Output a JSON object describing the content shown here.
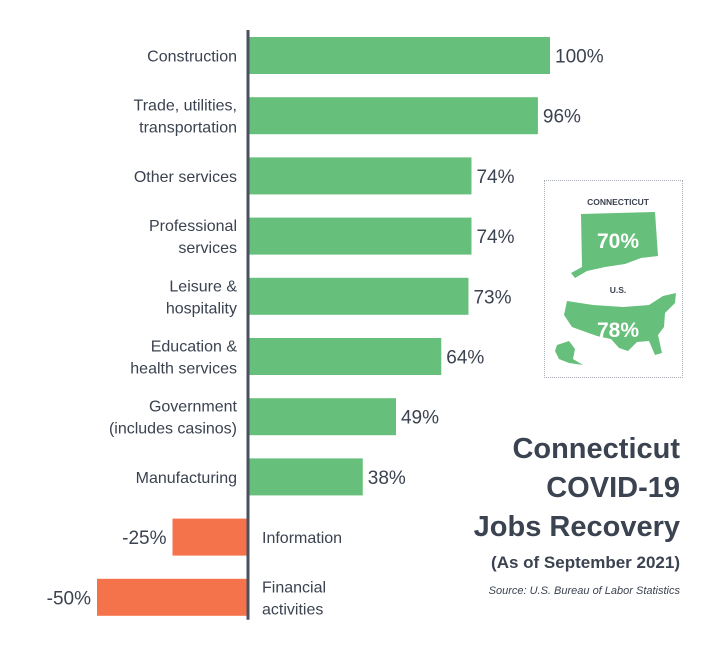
{
  "chart_data": {
    "type": "bar",
    "orientation": "horizontal",
    "categories": [
      "Construction",
      "Trade, utilities,\ntransportation",
      "Other services",
      "Professional\nservices",
      "Leisure &\nhospitality",
      "Education &\nhealth services",
      "Government\n(includes casinos)",
      "Manufacturing",
      "Information",
      "Financial\nactivities"
    ],
    "values": [
      100,
      96,
      74,
      74,
      73,
      64,
      49,
      38,
      -25,
      -50
    ],
    "value_labels": [
      "100%",
      "96%",
      "74%",
      "74%",
      "73%",
      "64%",
      "49%",
      "38%",
      "-25%",
      "-50%"
    ],
    "colors": {
      "positive": "#66bf7a",
      "negative": "#f5734a"
    },
    "xlim": [
      -50,
      100
    ]
  },
  "title": {
    "lines": [
      "Connecticut",
      "COVID-19",
      "Jobs Recovery"
    ],
    "subtitle": "(As of September 2021)",
    "source": "Source: U.S. Bureau of Labor Statistics"
  },
  "inset": {
    "ct_label": "CONNECTICUT",
    "ct_value": "70%",
    "us_label": "U.S.",
    "us_value": "78%",
    "ct_icon": "connecticut-map-icon",
    "us_icon": "us-map-icon"
  }
}
